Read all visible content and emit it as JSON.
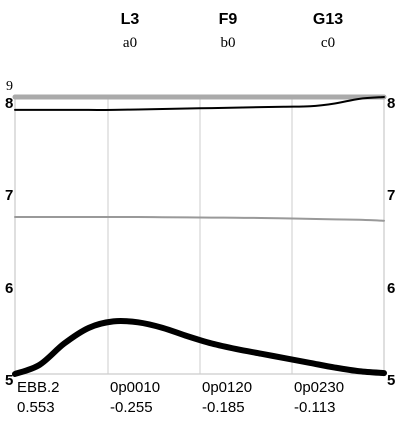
{
  "chart_data": {
    "type": "line",
    "header_columns": [
      {
        "title": "L3",
        "subtitle": "a0"
      },
      {
        "title": "F9",
        "subtitle": "b0"
      },
      {
        "title": "G13",
        "subtitle": "c0"
      }
    ],
    "top_label": "9",
    "ylim": [
      5,
      8
    ],
    "yticks_left": [
      "8",
      "7",
      "6",
      "5"
    ],
    "yticks_right": [
      "8",
      "7",
      "6",
      "5"
    ],
    "categories": [
      "EBB.2",
      "0p0010",
      "0p0120",
      "0p0230"
    ],
    "category_values": [
      "0.553",
      "-0.255",
      "-0.185",
      "-0.113"
    ],
    "x": [
      0,
      0.25,
      0.5,
      0.75,
      1.0,
      1.25,
      1.5,
      1.75,
      2.0,
      2.25,
      2.5,
      2.75,
      3.0,
      3.25,
      3.5,
      3.75
    ],
    "series": [
      {
        "color": "#aaaaaa",
        "width": 5,
        "values": [
          8.0,
          8.0,
          8.0,
          8.0,
          8.0,
          8.0,
          8.0,
          8.0,
          8.0,
          8.0,
          8.0,
          8.0,
          8.0,
          8.0,
          8.0,
          8.0
        ]
      },
      {
        "color": "#000000",
        "width": 2,
        "values": [
          7.86,
          7.86,
          7.86,
          7.86,
          7.86,
          7.865,
          7.87,
          7.875,
          7.88,
          7.885,
          7.89,
          7.895,
          7.9,
          7.93,
          7.98,
          8.0
        ]
      },
      {
        "color": "#999999",
        "width": 2,
        "values": [
          6.7,
          6.7,
          6.7,
          6.7,
          6.7,
          6.7,
          6.698,
          6.696,
          6.694,
          6.692,
          6.69,
          6.685,
          6.68,
          6.675,
          6.67,
          6.66
        ]
      },
      {
        "color": "#000000",
        "width": 6,
        "values": [
          5.0,
          5.1,
          5.33,
          5.5,
          5.57,
          5.56,
          5.5,
          5.41,
          5.33,
          5.27,
          5.22,
          5.17,
          5.12,
          5.07,
          5.03,
          5.01
        ]
      }
    ],
    "grid": true
  }
}
